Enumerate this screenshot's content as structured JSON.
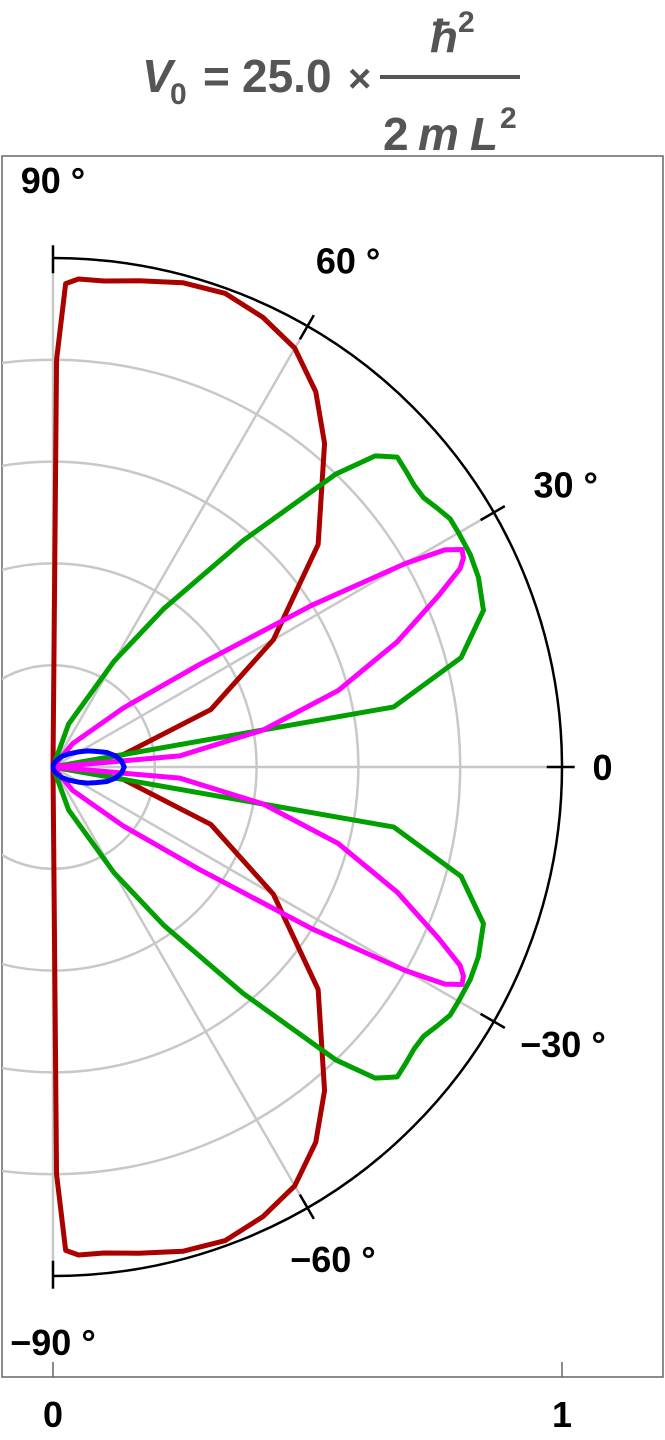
{
  "title": {
    "lhs": "V",
    "lhs_sub": "0",
    "eq": "=",
    "factor": "25.0",
    "times": "×",
    "numerator": "ħ",
    "numerator_sup": "2",
    "den_coeff": "2",
    "den_m": "m",
    "den_L": "L",
    "den_sup": "2"
  },
  "chart_data": {
    "type": "polar-line",
    "title": "V0 = 25.0 × ħ^2 / (2 m L^2)",
    "theta_range_deg": [
      -90,
      90
    ],
    "r_range": [
      0,
      1
    ],
    "angle_ticks": [
      {
        "deg": 90,
        "label": "90 °"
      },
      {
        "deg": 60,
        "label": "60 °"
      },
      {
        "deg": 30,
        "label": "30 °"
      },
      {
        "deg": 0,
        "label": "0"
      },
      {
        "deg": -30,
        "label": "−30 °"
      },
      {
        "deg": -60,
        "label": "−60 °"
      },
      {
        "deg": -90,
        "label": "−90 °"
      }
    ],
    "radial_ticks": [
      {
        "value": 0,
        "label": "0"
      },
      {
        "value": 1,
        "label": "1"
      }
    ],
    "radial_grid": [
      0.2,
      0.4,
      0.6,
      0.8
    ],
    "angular_grid_deg": [
      -90,
      -60,
      -30,
      0,
      30,
      60,
      90
    ],
    "grid": true,
    "series": [
      {
        "color": "#aa0000",
        "theta_deg": [
          0,
          10,
          20,
          30,
          40,
          50,
          55,
          60,
          65,
          70,
          75,
          80,
          84,
          87,
          88.5,
          89.5,
          90
        ],
        "r": [
          0,
          0.14,
          0.33,
          0.5,
          0.68,
          0.83,
          0.9,
          0.95,
          0.975,
          0.99,
          0.985,
          0.97,
          0.96,
          0.96,
          0.95,
          0.8,
          0
        ]
      },
      {
        "color": "#00a000",
        "theta_deg": [
          0,
          10,
          15,
          20,
          24,
          27,
          30,
          32,
          34,
          36,
          38,
          40,
          42,
          44,
          46,
          50,
          55,
          60,
          70,
          90
        ],
        "r": [
          0,
          0.68,
          0.83,
          0.9,
          0.915,
          0.92,
          0.92,
          0.92,
          0.91,
          0.9,
          0.9,
          0.905,
          0.91,
          0.88,
          0.8,
          0.58,
          0.38,
          0.24,
          0.09,
          0
        ]
      },
      {
        "color": "#ff00ff",
        "theta_deg": [
          0,
          5,
          10,
          15,
          20,
          24,
          26,
          27,
          28,
          29,
          30,
          32,
          35,
          40,
          50,
          90
        ],
        "r": [
          0,
          0.25,
          0.42,
          0.58,
          0.72,
          0.83,
          0.89,
          0.905,
          0.91,
          0.88,
          0.8,
          0.6,
          0.35,
          0.18,
          0.06,
          0
        ]
      },
      {
        "color": "#0000ff",
        "theta_deg": [
          0,
          5,
          10,
          15,
          20,
          25,
          30,
          40,
          50,
          60,
          70,
          80,
          90
        ],
        "r": [
          0.14,
          0.135,
          0.125,
          0.11,
          0.09,
          0.075,
          0.06,
          0.04,
          0.027,
          0.017,
          0.009,
          0.004,
          0
        ]
      }
    ]
  }
}
